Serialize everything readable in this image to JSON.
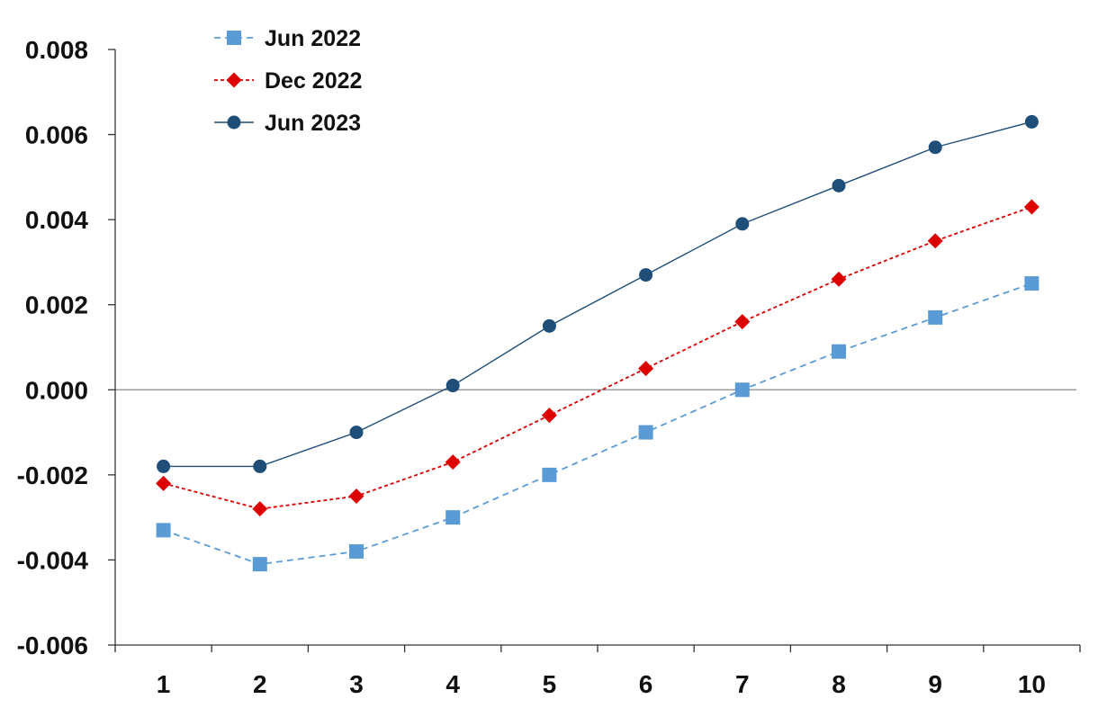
{
  "chart_data": {
    "type": "line",
    "title": "",
    "xlabel": "",
    "ylabel": "",
    "categories": [
      "1",
      "2",
      "3",
      "4",
      "5",
      "6",
      "7",
      "8",
      "9",
      "10"
    ],
    "ylim": [
      -0.006,
      0.008
    ],
    "y_ticks": [
      "0.008",
      "0.006",
      "0.004",
      "0.002",
      "0.000",
      "-0.002",
      "-0.004",
      "-0.006"
    ],
    "y_tick_values": [
      0.008,
      0.006,
      0.004,
      0.002,
      0.0,
      -0.002,
      -0.004,
      -0.006
    ],
    "grid": false,
    "zero_line": true,
    "legend_position": "top-left",
    "series": [
      {
        "name": "Jun 2022",
        "values": [
          -0.0033,
          -0.0041,
          -0.0038,
          -0.003,
          -0.002,
          -0.001,
          0.0,
          0.0009,
          0.0017,
          0.0025
        ],
        "color": "#5b9bd5",
        "line_style": "dashed",
        "marker": "square"
      },
      {
        "name": "Dec 2022",
        "values": [
          -0.0022,
          -0.0028,
          -0.0025,
          -0.0017,
          -0.0006,
          0.0005,
          0.0016,
          0.0026,
          0.0035,
          0.0043
        ],
        "color": "#dd0000",
        "line_style": "dotted",
        "marker": "diamond"
      },
      {
        "name": "Jun 2023",
        "values": [
          -0.0018,
          -0.0018,
          -0.001,
          0.0001,
          0.0015,
          0.0027,
          0.0039,
          0.0048,
          0.0057,
          0.0063
        ],
        "color": "#1f4e79",
        "line_style": "solid",
        "marker": "circle"
      }
    ]
  }
}
